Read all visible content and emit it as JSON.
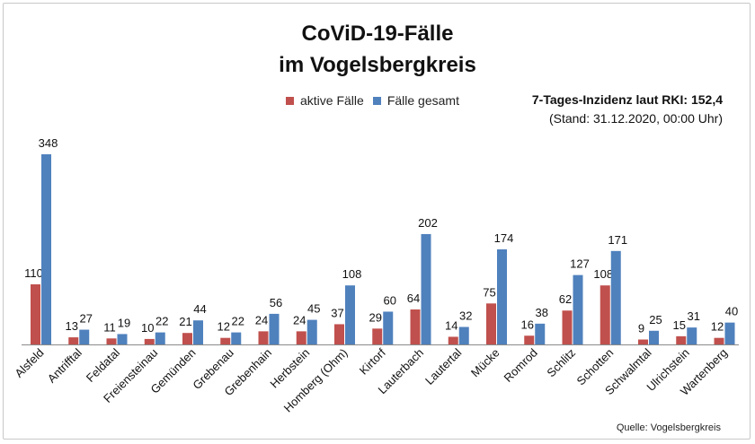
{
  "title_line1": "CoViD-19-Fälle",
  "title_line2": "im Vogelsbergkreis",
  "incidence_line": "7-Tages-Inzidenz laut RKI: 152,4",
  "stand_line": "(Stand: 31.12.2020, 00:00 Uhr)",
  "source": "Quelle: Vogelsbergkreis",
  "colors": {
    "active": "#c0504d",
    "total": "#4f81bd"
  },
  "chart_data": {
    "type": "bar",
    "title": "CoViD-19-Fälle im Vogelsbergkreis",
    "xlabel": "",
    "ylabel": "",
    "ylim": [
      0,
      348
    ],
    "grid": false,
    "legend_position": "top",
    "categories": [
      "Alsfeld",
      "Antrifftal",
      "Feldatal",
      "Freiensteinau",
      "Gemünden",
      "Grebenau",
      "Grebenhain",
      "Herbstein",
      "Homberg (Ohm)",
      "Kirtorf",
      "Lauterbach",
      "Lautertal",
      "Mücke",
      "Romrod",
      "Schlitz",
      "Schotten",
      "Schwalmtal",
      "Ulrichstein",
      "Wartenberg"
    ],
    "series": [
      {
        "name": "aktive Fälle",
        "color": "#c0504d",
        "values": [
          110,
          13,
          11,
          10,
          21,
          12,
          24,
          24,
          37,
          29,
          64,
          14,
          75,
          16,
          62,
          108,
          9,
          15,
          12
        ]
      },
      {
        "name": "Fälle gesamt",
        "color": "#4f81bd",
        "values": [
          348,
          27,
          19,
          22,
          44,
          22,
          56,
          45,
          108,
          60,
          202,
          32,
          174,
          38,
          127,
          171,
          25,
          31,
          40
        ]
      }
    ]
  }
}
